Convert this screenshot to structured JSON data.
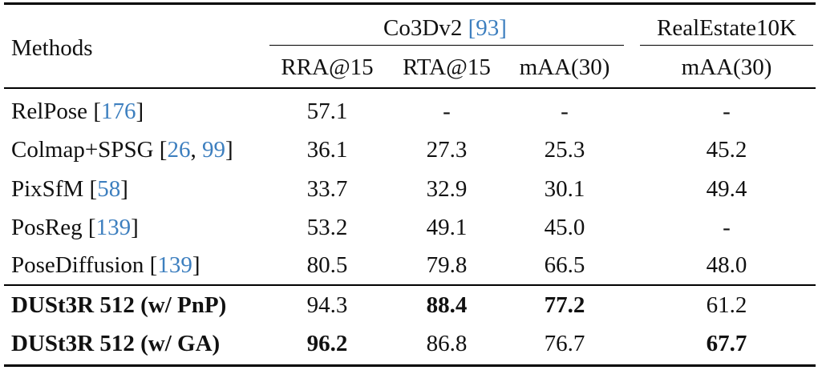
{
  "header": {
    "methods": "Methods",
    "group1": {
      "name": "Co3Dv2",
      "ref": "93"
    },
    "group2": {
      "name": "RealEstate10K"
    },
    "sub": [
      "RRA@15",
      "RTA@15",
      "mAA(30)",
      "mAA(30)"
    ]
  },
  "rows": [
    {
      "name": "RelPose",
      "refs": [
        "176"
      ],
      "vals": [
        "57.1",
        "-",
        "-",
        "-"
      ],
      "bold_name": false,
      "bold_vals": [
        false,
        false,
        false,
        false
      ]
    },
    {
      "name": "Colmap+SPSG",
      "refs": [
        "26",
        "99"
      ],
      "vals": [
        "36.1",
        "27.3",
        "25.3",
        "45.2"
      ],
      "bold_name": false,
      "bold_vals": [
        false,
        false,
        false,
        false
      ]
    },
    {
      "name": "PixSfM",
      "refs": [
        "58"
      ],
      "vals": [
        "33.7",
        "32.9",
        "30.1",
        "49.4"
      ],
      "bold_name": false,
      "bold_vals": [
        false,
        false,
        false,
        false
      ]
    },
    {
      "name": "PosReg",
      "refs": [
        "139"
      ],
      "vals": [
        "53.2",
        "49.1",
        "45.0",
        "-"
      ],
      "bold_name": false,
      "bold_vals": [
        false,
        false,
        false,
        false
      ]
    },
    {
      "name": "PoseDiffusion",
      "refs": [
        "139"
      ],
      "vals": [
        "80.5",
        "79.8",
        "66.5",
        "48.0"
      ],
      "bold_name": false,
      "bold_vals": [
        false,
        false,
        false,
        false
      ]
    },
    {
      "name": "DUSt3R 512 (w/ PnP)",
      "refs": [],
      "vals": [
        "94.3",
        "88.4",
        "77.2",
        "61.2"
      ],
      "bold_name": true,
      "bold_vals": [
        false,
        true,
        true,
        false
      ]
    },
    {
      "name": "DUSt3R 512 (w/ GA)",
      "refs": [],
      "vals": [
        "96.2",
        "86.8",
        "76.7",
        "67.7"
      ],
      "bold_name": true,
      "bold_vals": [
        true,
        false,
        false,
        true
      ]
    }
  ]
}
